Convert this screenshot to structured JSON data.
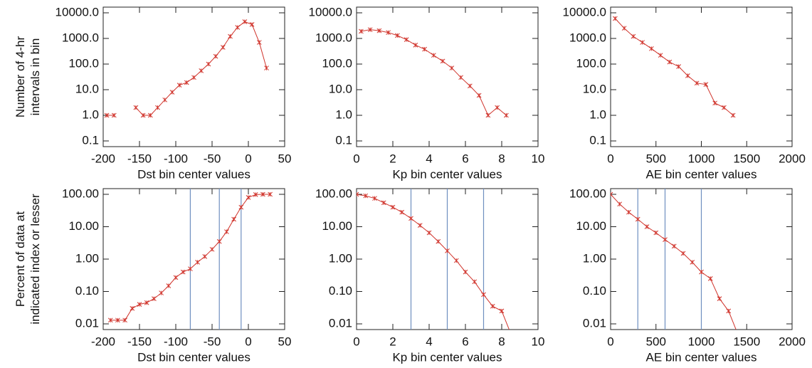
{
  "chart_data": [
    {
      "type": "line",
      "log_y": true,
      "color": "#d0342c",
      "ylabel": [
        "Number of 4-hr",
        "intervals in bin"
      ],
      "xlabel": "Dst bin center values",
      "x": [
        -195,
        -185,
        -175,
        -165,
        -155,
        -145,
        -135,
        -125,
        -115,
        -105,
        -95,
        -85,
        -75,
        -65,
        -55,
        -45,
        -35,
        -25,
        -15,
        -5,
        5,
        15,
        25
      ],
      "values": [
        1,
        1,
        null,
        null,
        2,
        1,
        1,
        2,
        4,
        8,
        15,
        19,
        30,
        55,
        100,
        200,
        450,
        1200,
        2700,
        4500,
        3500,
        700,
        70
      ],
      "xlim": [
        -200,
        50
      ],
      "xticks": [
        -200,
        -150,
        -100,
        -50,
        0,
        50
      ],
      "ylim": [
        0.1,
        10000
      ],
      "yticks": [
        {
          "value": 0.1,
          "label": "0.1"
        },
        {
          "value": 1,
          "label": "1.0"
        },
        {
          "value": 10,
          "label": "10.0"
        },
        {
          "value": 100,
          "label": "100.0"
        },
        {
          "value": 1000,
          "label": "1000.0"
        },
        {
          "value": 10000,
          "label": "10000.0"
        }
      ]
    },
    {
      "type": "line",
      "log_y": true,
      "color": "#d0342c",
      "xlabel": "Kp bin center values",
      "x": [
        0.25,
        0.75,
        1.25,
        1.75,
        2.25,
        2.75,
        3.25,
        3.75,
        4.25,
        4.75,
        5.25,
        5.75,
        6.25,
        6.75,
        7.25,
        7.75,
        8.25
      ],
      "values": [
        1900,
        2200,
        2000,
        1700,
        1300,
        900,
        550,
        380,
        220,
        130,
        70,
        30,
        14,
        6,
        1,
        2,
        1
      ],
      "xlim": [
        0,
        10
      ],
      "xticks": [
        0,
        2,
        4,
        6,
        8,
        10
      ],
      "ylim": [
        0.1,
        10000
      ],
      "yticks": [
        {
          "value": 0.1,
          "label": "0.1"
        },
        {
          "value": 1,
          "label": "1.0"
        },
        {
          "value": 10,
          "label": "10.0"
        },
        {
          "value": 100,
          "label": "100.0"
        },
        {
          "value": 1000,
          "label": "1000.0"
        },
        {
          "value": 10000,
          "label": "10000.0"
        }
      ]
    },
    {
      "type": "line",
      "log_y": true,
      "color": "#d0342c",
      "xlabel": "AE bin center values",
      "x": [
        50,
        150,
        250,
        350,
        450,
        550,
        650,
        750,
        850,
        950,
        1050,
        1150,
        1250,
        1350
      ],
      "values": [
        6000,
        2500,
        1200,
        700,
        400,
        220,
        120,
        80,
        35,
        18,
        16,
        3,
        2,
        1
      ],
      "xlim": [
        0,
        2000
      ],
      "xticks": [
        0,
        500,
        1000,
        1500,
        2000
      ],
      "ylim": [
        0.1,
        10000
      ],
      "yticks": [
        {
          "value": 0.1,
          "label": "0.1"
        },
        {
          "value": 1,
          "label": "1.0"
        },
        {
          "value": 10,
          "label": "10.0"
        },
        {
          "value": 100,
          "label": "100.0"
        },
        {
          "value": 1000,
          "label": "1000.0"
        },
        {
          "value": 10000,
          "label": "10000.0"
        }
      ]
    },
    {
      "type": "line",
      "log_y": true,
      "color": "#d0342c",
      "vline_color": "#6f8fc0",
      "ylabel": [
        "Percent of data at",
        "indicated index or lesser"
      ],
      "xlabel": "Dst bin center values",
      "x": [
        -190,
        -180,
        -170,
        -160,
        -150,
        -140,
        -130,
        -120,
        -110,
        -100,
        -90,
        -80,
        -70,
        -60,
        -50,
        -40,
        -30,
        -20,
        -10,
        0,
        10,
        20,
        30
      ],
      "values": [
        0.013,
        0.013,
        0.013,
        0.03,
        0.04,
        0.045,
        0.06,
        0.09,
        0.15,
        0.27,
        0.4,
        0.5,
        0.8,
        1.2,
        2,
        3.5,
        7,
        17,
        40,
        80,
        98,
        100,
        100
      ],
      "vlines": [
        -80,
        -40,
        -10
      ],
      "xlim": [
        -200,
        50
      ],
      "xticks": [
        -200,
        -150,
        -100,
        -50,
        0,
        50
      ],
      "ylim": [
        0.01,
        100
      ],
      "yticks": [
        {
          "value": 0.01,
          "label": "0.01"
        },
        {
          "value": 0.1,
          "label": "0.10"
        },
        {
          "value": 1,
          "label": "1.00"
        },
        {
          "value": 10,
          "label": "10.00"
        },
        {
          "value": 100,
          "label": "100.00"
        }
      ]
    },
    {
      "type": "line",
      "log_y": true,
      "color": "#d0342c",
      "vline_color": "#6f8fc0",
      "xlabel": "Kp bin center values",
      "x": [
        0,
        0.5,
        1,
        1.5,
        2,
        2.5,
        3,
        3.5,
        4,
        4.5,
        5,
        5.5,
        6,
        6.5,
        7,
        7.5,
        8,
        8.5
      ],
      "values": [
        100,
        90,
        75,
        55,
        40,
        28,
        18,
        11,
        6.5,
        3.5,
        1.8,
        0.9,
        0.4,
        0.2,
        0.08,
        0.035,
        0.025,
        0.005
      ],
      "vlines": [
        3,
        5,
        7
      ],
      "xlim": [
        0,
        10
      ],
      "xticks": [
        0,
        2,
        4,
        6,
        8,
        10
      ],
      "ylim": [
        0.01,
        100
      ],
      "yticks": [
        {
          "value": 0.01,
          "label": "0.01"
        },
        {
          "value": 0.1,
          "label": "0.10"
        },
        {
          "value": 1,
          "label": "1.00"
        },
        {
          "value": 10,
          "label": "10.00"
        },
        {
          "value": 100,
          "label": "100.00"
        }
      ]
    },
    {
      "type": "line",
      "log_y": true,
      "color": "#d0342c",
      "vline_color": "#6f8fc0",
      "xlabel": "AE bin center values",
      "x": [
        0,
        100,
        200,
        300,
        400,
        500,
        600,
        700,
        800,
        900,
        1000,
        1100,
        1200,
        1300,
        1400
      ],
      "values": [
        100,
        50,
        28,
        17,
        10,
        6.5,
        4,
        2.5,
        1.5,
        0.8,
        0.4,
        0.25,
        0.06,
        0.025,
        0.005
      ],
      "vlines": [
        300,
        600,
        1000
      ],
      "xlim": [
        0,
        2000
      ],
      "xticks": [
        0,
        500,
        1000,
        1500,
        2000
      ],
      "ylim": [
        0.01,
        100
      ],
      "yticks": [
        {
          "value": 0.01,
          "label": "0.01"
        },
        {
          "value": 0.1,
          "label": "0.10"
        },
        {
          "value": 1,
          "label": "1.00"
        },
        {
          "value": 10,
          "label": "10.00"
        },
        {
          "value": 100,
          "label": "100.00"
        }
      ]
    }
  ]
}
